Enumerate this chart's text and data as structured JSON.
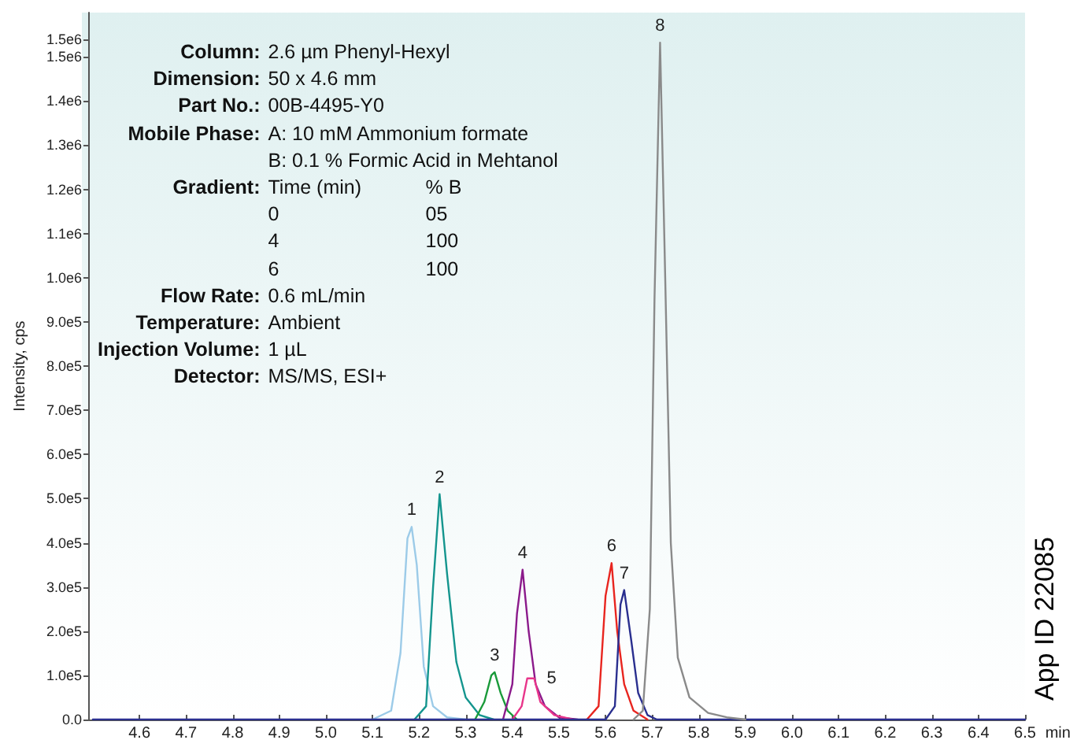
{
  "chart_data": {
    "type": "line",
    "xlabel": "min",
    "ylabel": "Intensity, cps",
    "xlim": [
      4.49,
      6.5
    ],
    "xticks": [
      4.6,
      4.7,
      4.8,
      4.9,
      {
        "value": 5,
        "label": "5.0"
      },
      5.1,
      5.2,
      5.3,
      5.4,
      5.5,
      5.6,
      5.7,
      5.8,
      5.9,
      {
        "value": 6,
        "label": "6.0"
      },
      6.1,
      6.2,
      6.3,
      6.4,
      6.5
    ],
    "ylim": [
      0,
      1600000
    ],
    "yticks": [
      {
        "value": 0,
        "label": "0.0"
      },
      {
        "value": 100000,
        "label": "1.0e5"
      },
      {
        "value": 200000,
        "label": "2.0e5"
      },
      {
        "value": 300000,
        "label": "3.0e5"
      },
      {
        "value": 400000,
        "label": "4.0e5"
      },
      {
        "value": 500000,
        "label": "5.0e5"
      },
      {
        "value": 600000,
        "label": "6.0e5"
      },
      {
        "value": 700000,
        "label": "7.0e5"
      },
      {
        "value": 800000,
        "label": "8.0e5"
      },
      {
        "value": 900000,
        "label": "9.0e5"
      },
      {
        "value": 1000000,
        "label": "1.0e6"
      },
      {
        "value": 1100000,
        "label": "1.1e6"
      },
      {
        "value": 1200000,
        "label": "1.2e6"
      },
      {
        "value": 1300000,
        "label": "1.3e6"
      },
      {
        "value": 1400000,
        "label": "1.4e6"
      },
      {
        "value": 1500000,
        "label": "1.5e6"
      },
      {
        "value": 1540000,
        "label": "1.5e6"
      }
    ],
    "grid": false,
    "legend": false,
    "marker": "none",
    "line_style": "solid",
    "series": [
      {
        "name": "1",
        "color": "#9ccbe8",
        "x": [
          5.1,
          5.14,
          5.16,
          5.175,
          5.184,
          5.195,
          5.21,
          5.23,
          5.26,
          5.3
        ],
        "values": [
          0,
          20000,
          150000,
          410000,
          436000,
          350000,
          120000,
          30000,
          5000,
          0
        ]
      },
      {
        "name": "2",
        "color": "#14958e",
        "x": [
          5.19,
          5.215,
          5.23,
          5.244,
          5.26,
          5.28,
          5.3,
          5.33,
          5.36
        ],
        "values": [
          0,
          30000,
          300000,
          510000,
          330000,
          130000,
          50000,
          10000,
          0
        ]
      },
      {
        "name": "3",
        "color": "#1a9a3a",
        "x": [
          5.32,
          5.34,
          5.355,
          5.362,
          5.375,
          5.39,
          5.41
        ],
        "values": [
          0,
          40000,
          100000,
          107000,
          60000,
          20000,
          0
        ]
      },
      {
        "name": "4",
        "color": "#8b1a8b",
        "x": [
          5.38,
          5.4,
          5.41,
          5.422,
          5.435,
          5.45,
          5.47,
          5.5,
          5.54
        ],
        "values": [
          0,
          80000,
          240000,
          339000,
          200000,
          80000,
          30000,
          5000,
          0
        ]
      },
      {
        "name": "5",
        "color": "#e8358a",
        "x": [
          5.4,
          5.42,
          5.432,
          5.447,
          5.46,
          5.49,
          5.53
        ],
        "values": [
          0,
          30000,
          93000,
          93000,
          40000,
          10000,
          0
        ]
      },
      {
        "name": "6",
        "color": "#e8251f",
        "x": [
          5.56,
          5.585,
          5.6,
          5.613,
          5.625,
          5.64,
          5.66,
          5.69
        ],
        "values": [
          0,
          30000,
          280000,
          354000,
          200000,
          80000,
          20000,
          0
        ]
      },
      {
        "name": "7",
        "color": "#2a2f8f",
        "x": [
          4.5,
          5.6,
          5.62,
          5.632,
          5.64,
          5.655,
          5.67,
          5.69,
          5.71,
          6.5
        ],
        "values": [
          0,
          0,
          30000,
          260000,
          293000,
          180000,
          60000,
          10000,
          0,
          0
        ]
      },
      {
        "name": "8",
        "color": "#8a8a8a",
        "x": [
          5.66,
          5.68,
          5.695,
          5.705,
          5.717,
          5.728,
          5.74,
          5.755,
          5.78,
          5.82,
          5.86,
          5.9
        ],
        "values": [
          0,
          20000,
          250000,
          950000,
          1532000,
          1000000,
          400000,
          140000,
          50000,
          15000,
          5000,
          0
        ]
      }
    ],
    "annotations": [
      "Column:\t2.6 µm Phenyl-Hexyl",
      "Dimension:\t50 x 4.6 mm",
      "Part No.:\t00B-4495-Y0",
      "Mobile Phase:\tA: 10 mM Ammonium formate",
      "\tB: 0.1 % Formic Acid in Mehtanol",
      "Gradient:\tTime (min)\t% B",
      "\t0\t05",
      "\t4\t100",
      "\t6\t100",
      "Flow Rate:\t0.6 mL/min",
      "Temperature:\tAmbient",
      "Injection Volume:\t1 µL",
      "Detector:\tMS/MS, ESI+",
      "App ID 22085"
    ]
  }
}
